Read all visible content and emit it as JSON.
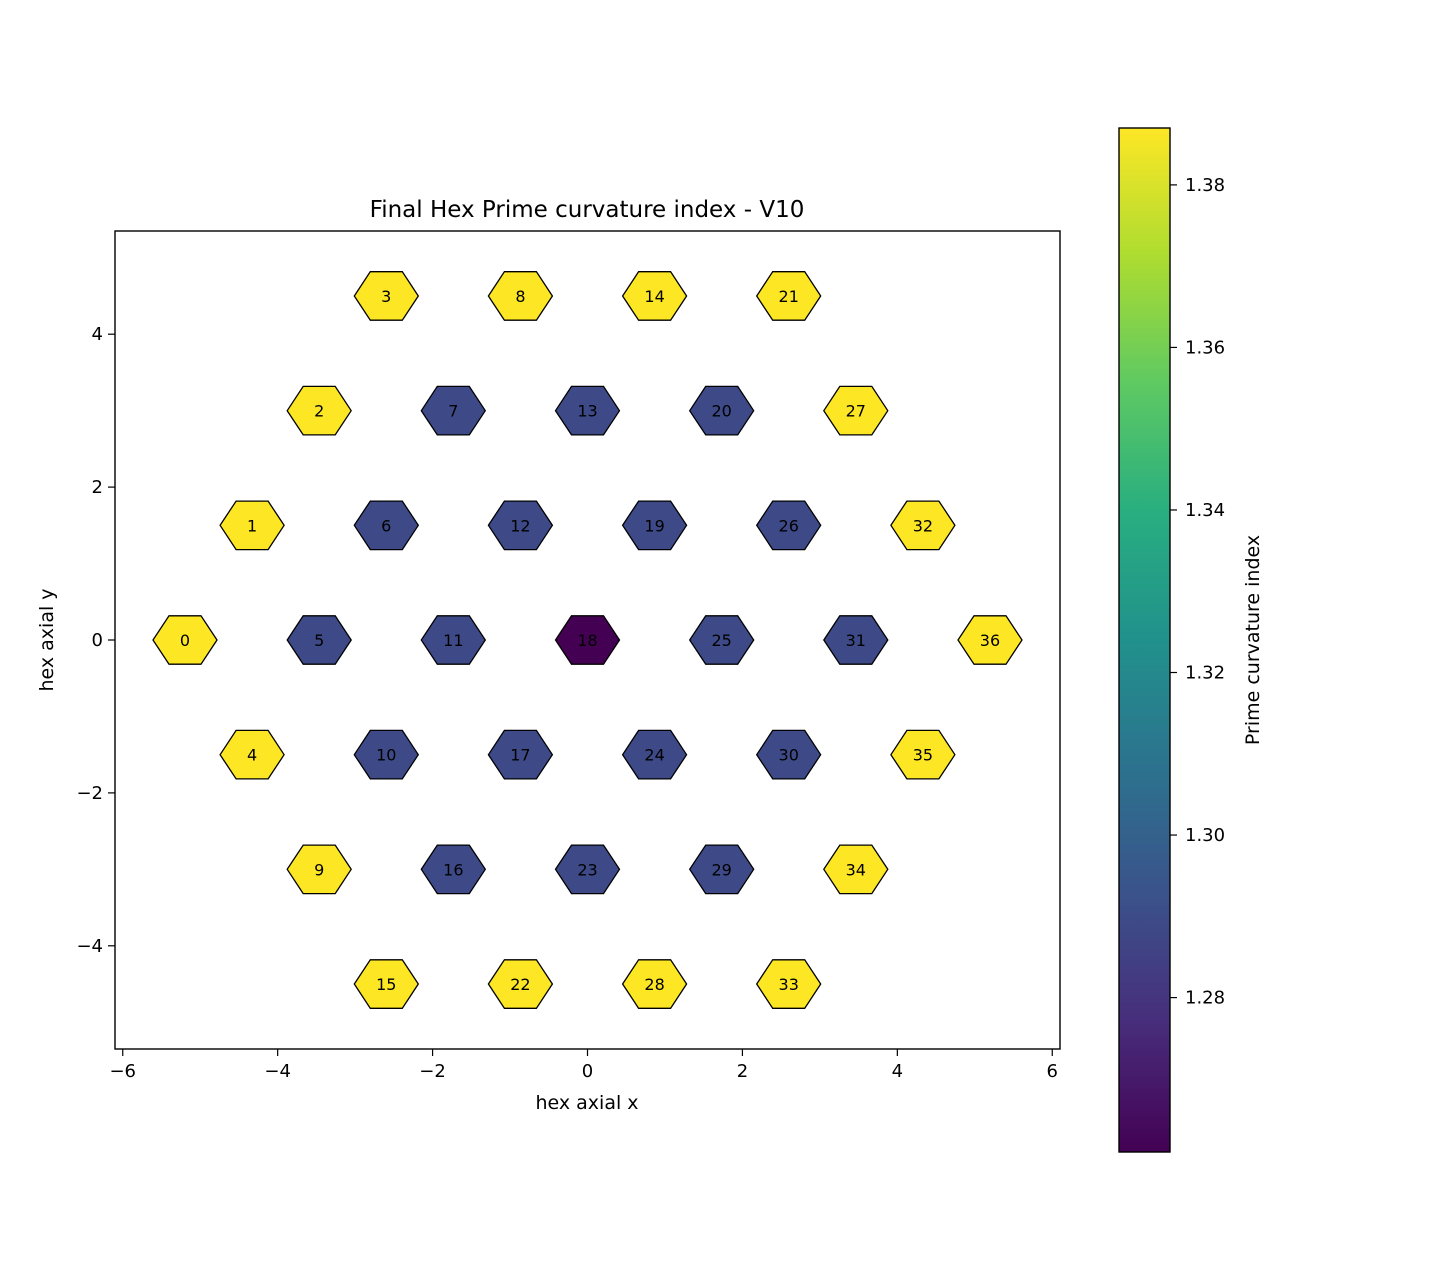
{
  "chart_data": {
    "type": "heatmap",
    "title": "Final Hex Prime curvature index - V10",
    "xlabel": "hex axial x",
    "ylabel": "hex axial y",
    "colorbar_label": "Prime curvature index",
    "xlim": [
      -6.1,
      6.1
    ],
    "ylim": [
      -5.35,
      5.35
    ],
    "xticks": [
      -6,
      -4,
      -2,
      0,
      2,
      4,
      6
    ],
    "yticks": [
      -4,
      -2,
      0,
      2,
      4
    ],
    "colorbar_range": [
      1.261,
      1.387
    ],
    "colorbar_ticks": [
      1.28,
      1.3,
      1.32,
      1.34,
      1.36,
      1.38
    ],
    "colormap": "viridis",
    "cells": [
      {
        "id": "0",
        "x": -5.196,
        "y": 0.0,
        "value": 1.387
      },
      {
        "id": "1",
        "x": -4.33,
        "y": 1.5,
        "value": 1.387
      },
      {
        "id": "2",
        "x": -3.464,
        "y": 3.0,
        "value": 1.387
      },
      {
        "id": "3",
        "x": -2.598,
        "y": 4.5,
        "value": 1.387
      },
      {
        "id": "4",
        "x": -4.33,
        "y": -1.5,
        "value": 1.387
      },
      {
        "id": "5",
        "x": -3.464,
        "y": 0.0,
        "value": 1.289
      },
      {
        "id": "6",
        "x": -2.598,
        "y": 1.5,
        "value": 1.289
      },
      {
        "id": "7",
        "x": -1.732,
        "y": 3.0,
        "value": 1.289
      },
      {
        "id": "8",
        "x": -0.866,
        "y": 4.5,
        "value": 1.387
      },
      {
        "id": "9",
        "x": -3.464,
        "y": -3.0,
        "value": 1.387
      },
      {
        "id": "10",
        "x": -2.598,
        "y": -1.5,
        "value": 1.289
      },
      {
        "id": "11",
        "x": -1.732,
        "y": 0.0,
        "value": 1.289
      },
      {
        "id": "12",
        "x": -0.866,
        "y": 1.5,
        "value": 1.289
      },
      {
        "id": "13",
        "x": 0.0,
        "y": 3.0,
        "value": 1.289
      },
      {
        "id": "14",
        "x": 0.866,
        "y": 4.5,
        "value": 1.387
      },
      {
        "id": "15",
        "x": -2.598,
        "y": -4.5,
        "value": 1.387
      },
      {
        "id": "16",
        "x": -1.732,
        "y": -3.0,
        "value": 1.289
      },
      {
        "id": "17",
        "x": -0.866,
        "y": -1.5,
        "value": 1.289
      },
      {
        "id": "18",
        "x": 0.0,
        "y": 0.0,
        "value": 1.261
      },
      {
        "id": "19",
        "x": 0.866,
        "y": 1.5,
        "value": 1.289
      },
      {
        "id": "20",
        "x": 1.732,
        "y": 3.0,
        "value": 1.289
      },
      {
        "id": "21",
        "x": 2.598,
        "y": 4.5,
        "value": 1.387
      },
      {
        "id": "22",
        "x": -0.866,
        "y": -4.5,
        "value": 1.387
      },
      {
        "id": "23",
        "x": 0.0,
        "y": -3.0,
        "value": 1.289
      },
      {
        "id": "24",
        "x": 0.866,
        "y": -1.5,
        "value": 1.289
      },
      {
        "id": "25",
        "x": 1.732,
        "y": 0.0,
        "value": 1.289
      },
      {
        "id": "26",
        "x": 2.598,
        "y": 1.5,
        "value": 1.289
      },
      {
        "id": "27",
        "x": 3.464,
        "y": 3.0,
        "value": 1.387
      },
      {
        "id": "28",
        "x": 0.866,
        "y": -4.5,
        "value": 1.387
      },
      {
        "id": "29",
        "x": 1.732,
        "y": -3.0,
        "value": 1.289
      },
      {
        "id": "30",
        "x": 2.598,
        "y": -1.5,
        "value": 1.289
      },
      {
        "id": "31",
        "x": 3.464,
        "y": 0.0,
        "value": 1.289
      },
      {
        "id": "32",
        "x": 4.33,
        "y": 1.5,
        "value": 1.387
      },
      {
        "id": "33",
        "x": 2.598,
        "y": -4.5,
        "value": 1.387
      },
      {
        "id": "34",
        "x": 3.464,
        "y": -3.0,
        "value": 1.387
      },
      {
        "id": "35",
        "x": 4.33,
        "y": -1.5,
        "value": 1.387
      },
      {
        "id": "36",
        "x": 5.196,
        "y": 0.0,
        "value": 1.387
      }
    ]
  }
}
